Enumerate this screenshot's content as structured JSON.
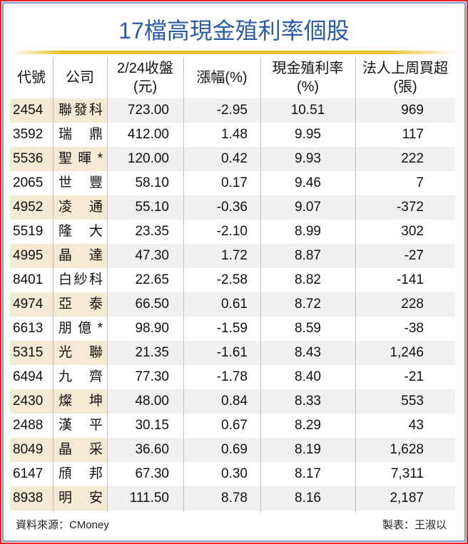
{
  "title": "17檔高現金殖利率個股",
  "headers": [
    {
      "line1": "代號",
      "line2": ""
    },
    {
      "line1": "公司",
      "line2": ""
    },
    {
      "line1": "2/24收盤",
      "line2": "(元)"
    },
    {
      "line1": "漲幅(%)",
      "line2": ""
    },
    {
      "line1": "現金殖利率",
      "line2": "(%)"
    },
    {
      "line1": "法人上周買超",
      "line2": "(張)"
    }
  ],
  "rows": [
    {
      "code": "2454",
      "company": "聯發科",
      "close": "723.00",
      "change": "-2.95",
      "yield": "10.51",
      "net_buy": "969"
    },
    {
      "code": "3592",
      "company": "瑞鼎",
      "close": "412.00",
      "change": "1.48",
      "yield": "9.95",
      "net_buy": "117"
    },
    {
      "code": "5536",
      "company": "聖暉*",
      "close": "120.00",
      "change": "0.42",
      "yield": "9.93",
      "net_buy": "222"
    },
    {
      "code": "2065",
      "company": "世豐",
      "close": "58.10",
      "change": "0.17",
      "yield": "9.46",
      "net_buy": "7"
    },
    {
      "code": "4952",
      "company": "凌通",
      "close": "55.10",
      "change": "-0.36",
      "yield": "9.07",
      "net_buy": "-372"
    },
    {
      "code": "5519",
      "company": "隆大",
      "close": "23.35",
      "change": "-2.10",
      "yield": "8.99",
      "net_buy": "302"
    },
    {
      "code": "4995",
      "company": "晶達",
      "close": "47.30",
      "change": "1.72",
      "yield": "8.87",
      "net_buy": "-27"
    },
    {
      "code": "8401",
      "company": "白紗科",
      "close": "22.65",
      "change": "-2.58",
      "yield": "8.82",
      "net_buy": "-141"
    },
    {
      "code": "4974",
      "company": "亞泰",
      "close": "66.50",
      "change": "0.61",
      "yield": "8.72",
      "net_buy": "228"
    },
    {
      "code": "6613",
      "company": "朋億*",
      "close": "98.90",
      "change": "-1.59",
      "yield": "8.59",
      "net_buy": "-38"
    },
    {
      "code": "5315",
      "company": "光聯",
      "close": "21.35",
      "change": "-1.61",
      "yield": "8.43",
      "net_buy": "1,246"
    },
    {
      "code": "6494",
      "company": "九齊",
      "close": "77.30",
      "change": "-1.78",
      "yield": "8.40",
      "net_buy": "-21"
    },
    {
      "code": "2430",
      "company": "燦坤",
      "close": "48.00",
      "change": "0.84",
      "yield": "8.33",
      "net_buy": "553"
    },
    {
      "code": "2488",
      "company": "漢平",
      "close": "30.15",
      "change": "0.67",
      "yield": "8.29",
      "net_buy": "43"
    },
    {
      "code": "8049",
      "company": "晶采",
      "close": "36.60",
      "change": "0.69",
      "yield": "8.19",
      "net_buy": "1,628"
    },
    {
      "code": "6147",
      "company": "頎邦",
      "close": "67.30",
      "change": "0.30",
      "yield": "8.17",
      "net_buy": "7,311"
    },
    {
      "code": "8938",
      "company": "明安",
      "close": "111.50",
      "change": "8.78",
      "yield": "8.16",
      "net_buy": "2,187"
    }
  ],
  "footer": {
    "source": "資料來源：CMoney",
    "credit": "製表：王淑以"
  },
  "colors": {
    "title": "#2a5caa",
    "gold_rule": "#e9bd1a",
    "code_highlight": "#f4e9d2",
    "row_stripe": "#f0f0f0",
    "frame_red": "#e8242a",
    "frame_blue": "#7f9ccb"
  }
}
